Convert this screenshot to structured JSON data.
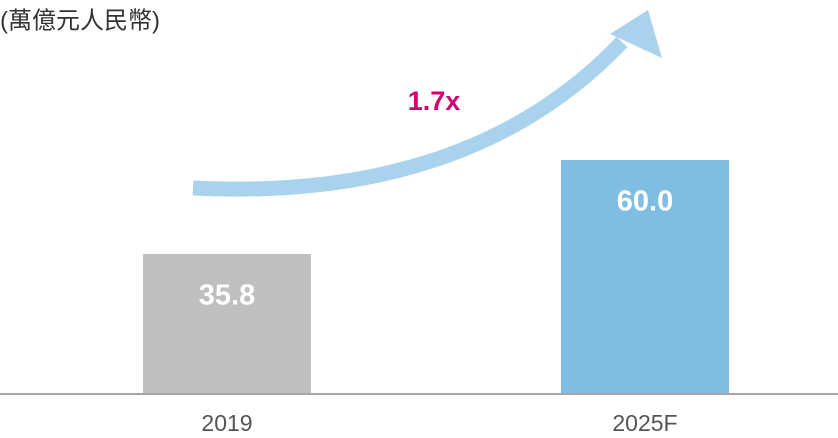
{
  "chart_data": {
    "type": "bar",
    "title": "(萬億元人民幣)",
    "categories": [
      "2019",
      "2025F"
    ],
    "values": [
      35.8,
      60.0
    ],
    "value_labels": [
      "35.8",
      "60.0"
    ],
    "colors": [
      "#bfbfbf",
      "#7fbde3"
    ],
    "annotation": "1.7x",
    "annotation_color": "#d4006f"
  }
}
